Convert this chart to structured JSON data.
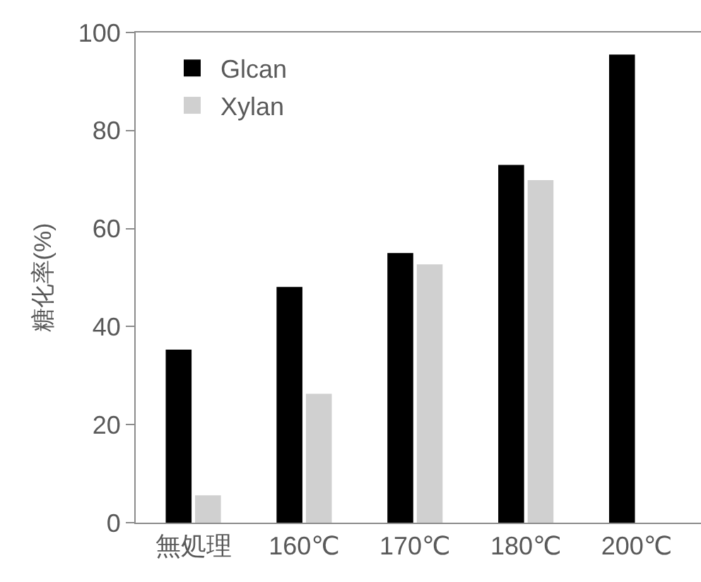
{
  "chart_data": {
    "type": "bar",
    "ylabel": "糖化率(%)",
    "categories": [
      "無処理",
      "160℃",
      "170℃",
      "180℃",
      "200℃"
    ],
    "series": [
      {
        "name": "Glcan",
        "color": "#000000",
        "values": [
          35.3,
          48.1,
          55.0,
          73.0,
          95.5
        ]
      },
      {
        "name": "Xylan",
        "color": "#d0d0d0",
        "values": [
          5.6,
          26.3,
          52.7,
          69.9,
          null
        ]
      }
    ],
    "ylim": [
      0,
      100
    ],
    "yticks": [
      0,
      20,
      40,
      60,
      80,
      100
    ],
    "grid": false,
    "legend": "top left"
  }
}
